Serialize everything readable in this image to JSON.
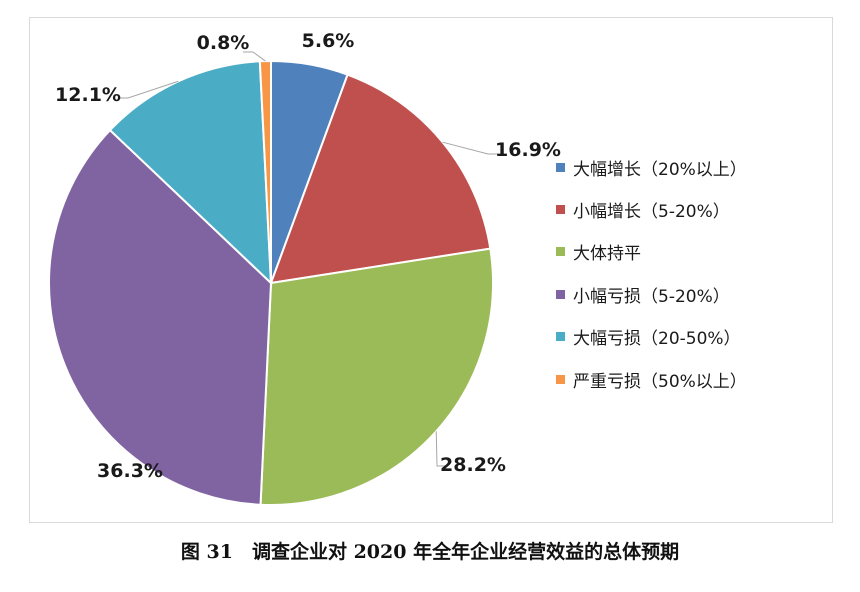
{
  "caption": "图 31　调查企业对 2020 年全年企业经营效益的总体预期",
  "chart_data": {
    "type": "pie",
    "title": "",
    "slices": [
      {
        "label": "大幅增长（20%以上）",
        "value": 5.6,
        "value_label": "5.6%",
        "color": "#4f81bd"
      },
      {
        "label": "小幅增长（5-20%）",
        "value": 16.9,
        "value_label": "16.9%",
        "color": "#c0504d"
      },
      {
        "label": "大体持平",
        "value": 28.2,
        "value_label": "28.2%",
        "color": "#9bbb59"
      },
      {
        "label": "小幅亏损（5-20%）",
        "value": 36.3,
        "value_label": "36.3%",
        "color": "#8064a2"
      },
      {
        "label": "大幅亏损（20-50%）",
        "value": 12.1,
        "value_label": "12.1%",
        "color": "#4bacc6"
      },
      {
        "label": "严重亏损（50%以上）",
        "value": 0.8,
        "value_label": "0.8%",
        "color": "#f79646"
      }
    ],
    "start_angle_deg": 0,
    "direction": "clockwise",
    "legend_position": "right"
  }
}
